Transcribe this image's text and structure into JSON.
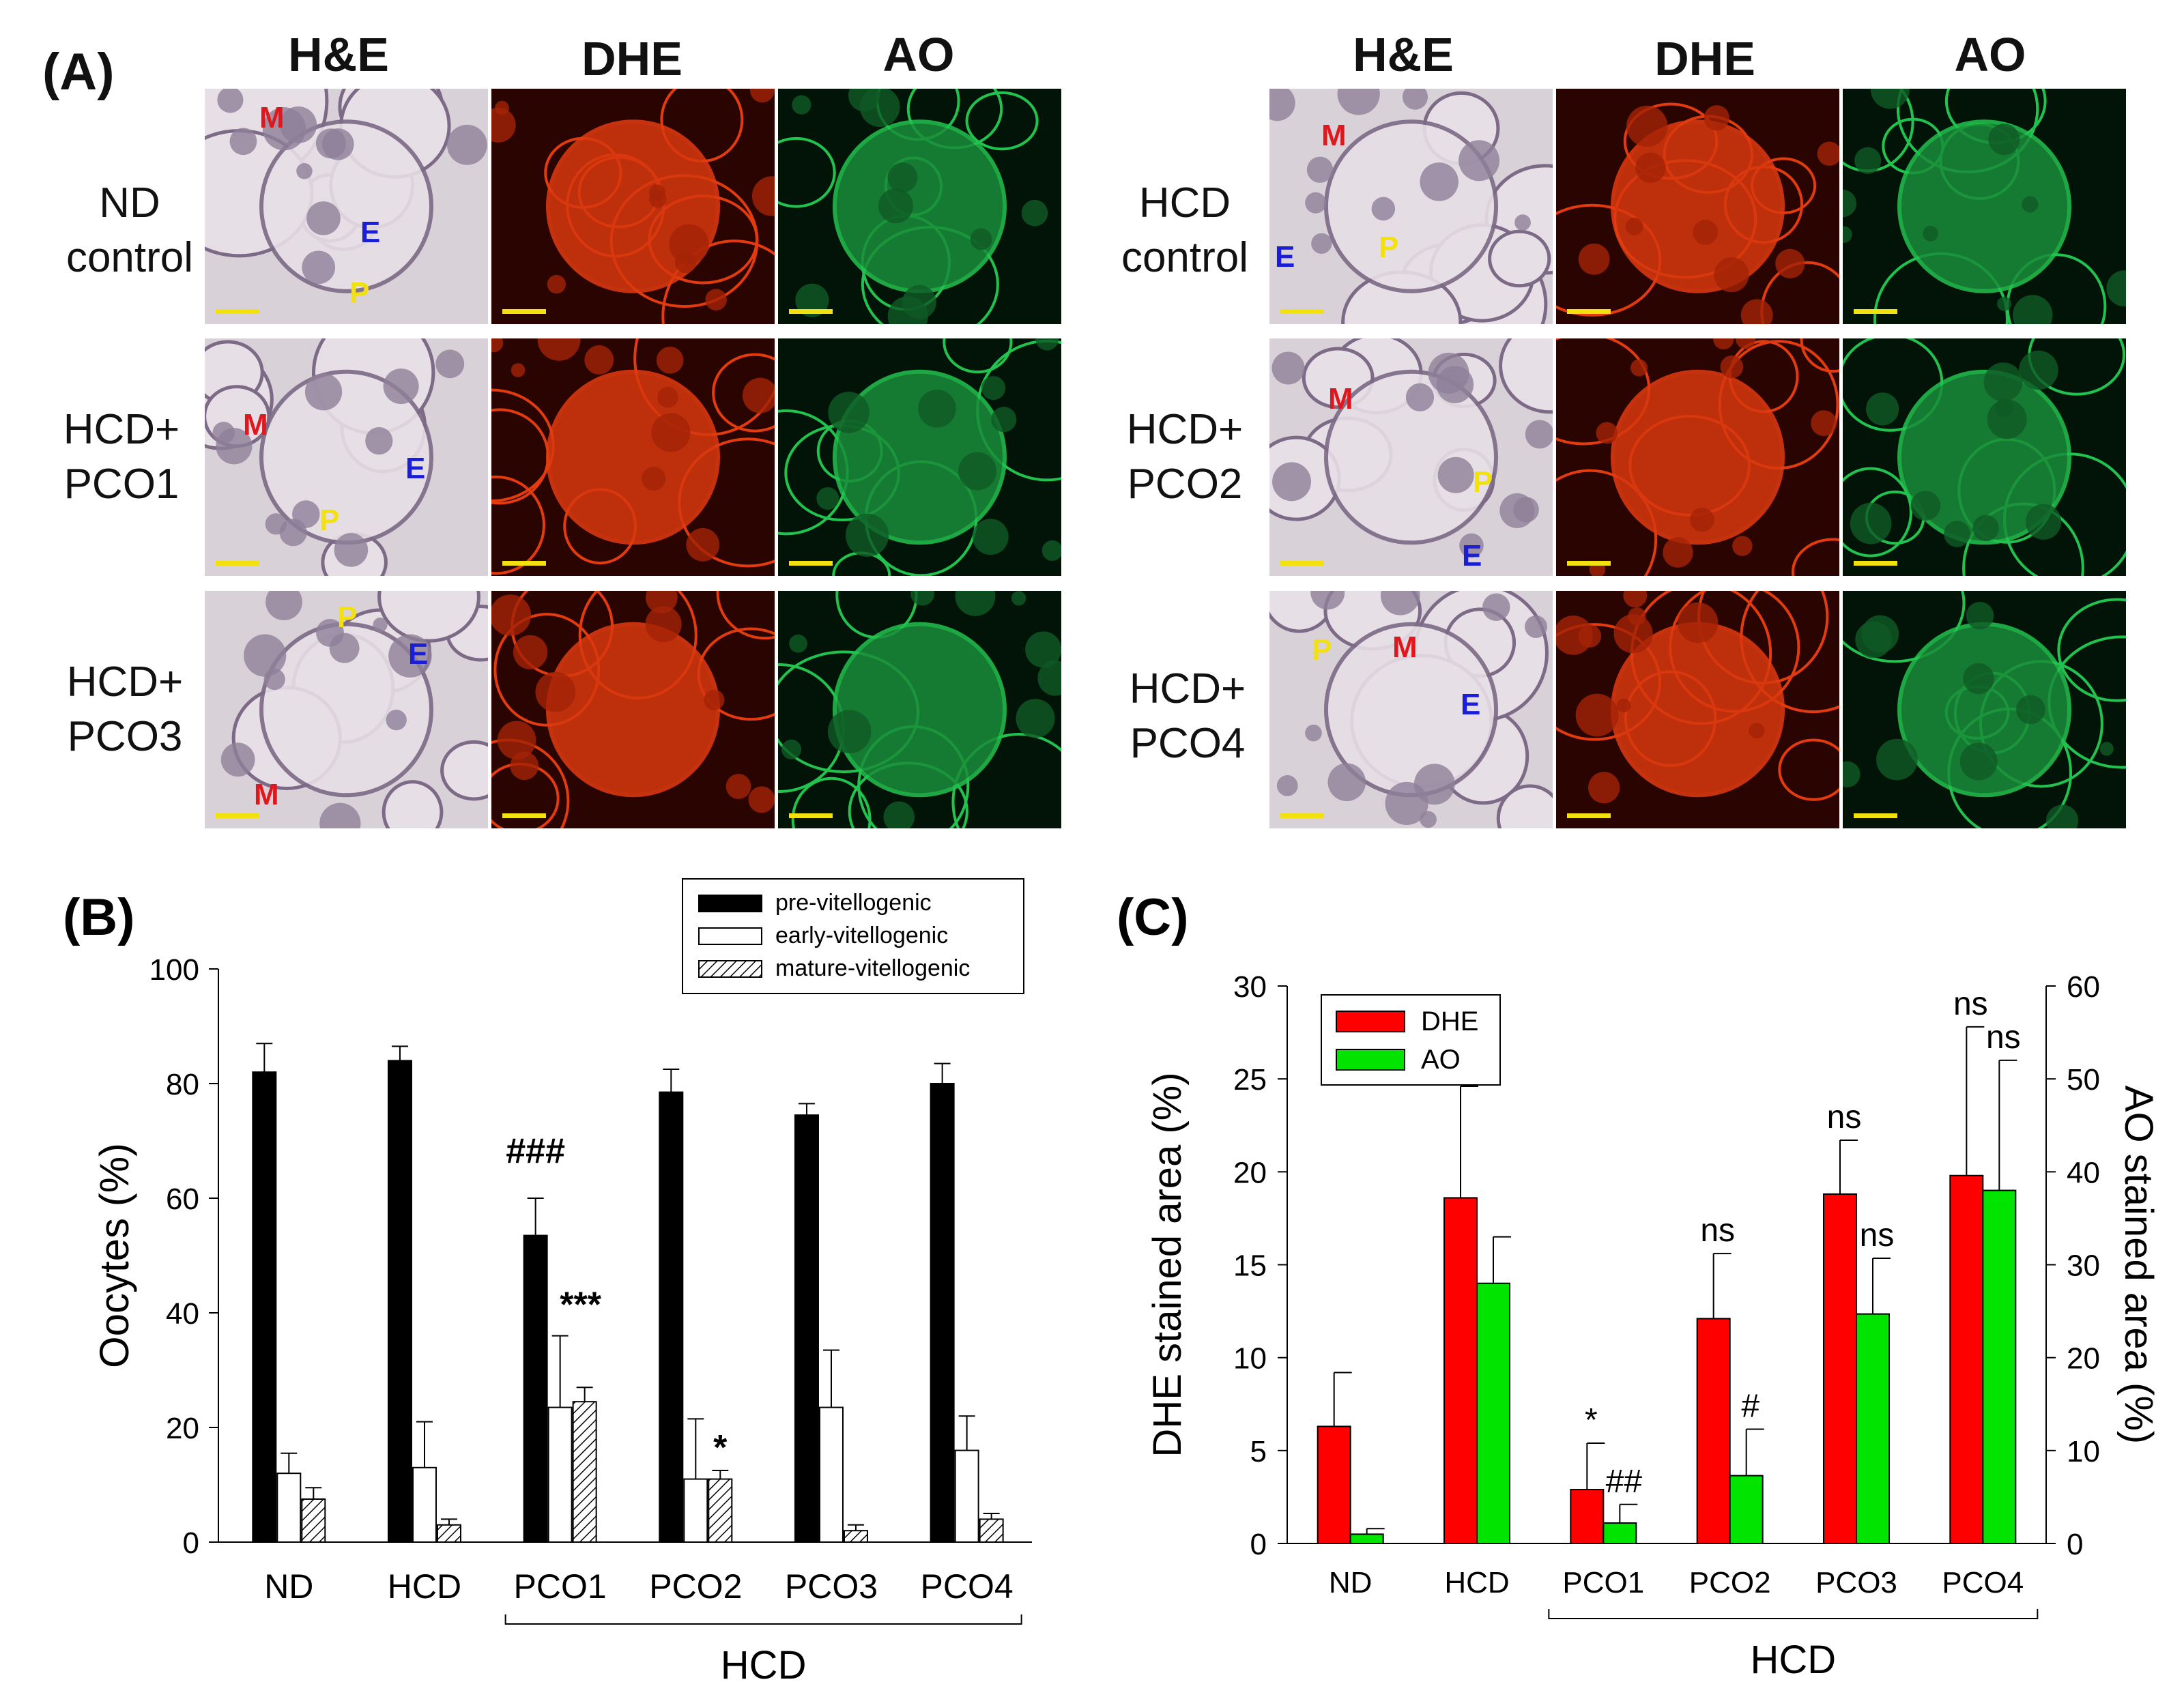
{
  "panelA": {
    "letter": "(A)",
    "col_heads": [
      "H&E",
      "DHE",
      "AO"
    ],
    "left_rows": [
      [
        "ND",
        "control"
      ],
      [
        "HCD+",
        "PCO1"
      ],
      [
        "HCD+",
        "PCO3"
      ]
    ],
    "right_rows": [
      [
        "HCD",
        "control"
      ],
      [
        "HCD+",
        "PCO2"
      ],
      [
        "HCD+",
        "PCO4"
      ]
    ],
    "marker_labels": {
      "M": "M",
      "E": "E",
      "P": "P"
    }
  },
  "chart_data": [
    {
      "type": "bar",
      "panel": "(B)",
      "categories": [
        "ND",
        "HCD",
        "PCO1",
        "PCO2",
        "PCO3",
        "PCO4"
      ],
      "group_label": "HCD",
      "ylabel": "Oocytes (%)",
      "ylim": [
        0,
        100
      ],
      "yticks": [
        0,
        20,
        40,
        60,
        80,
        100
      ],
      "legend_position": "top-right",
      "series": [
        {
          "name": "pre-vitellogenic",
          "color": "#000000",
          "fill": "solid",
          "values": [
            82,
            84,
            53.5,
            78.5,
            74.5,
            80
          ],
          "errors": [
            5,
            2.5,
            6.5,
            4,
            2,
            3.5
          ]
        },
        {
          "name": "early-vitellogenic",
          "color": "#ffffff",
          "fill": "open",
          "values": [
            12,
            13,
            23.5,
            11,
            23.5,
            16
          ],
          "errors": [
            3.5,
            8,
            12.5,
            10.5,
            10,
            6
          ]
        },
        {
          "name": "mature-vitellogenic",
          "color": "#ffffff",
          "fill": "hatched",
          "values": [
            7.5,
            3,
            24.5,
            11,
            2,
            4
          ],
          "errors": [
            2,
            1,
            2.5,
            1.5,
            1,
            1
          ]
        }
      ],
      "annotations": [
        {
          "text": "###",
          "category": "PCO1",
          "series": "pre-vitellogenic"
        },
        {
          "text": "***",
          "category": "PCO1",
          "series": "early-vitellogenic"
        },
        {
          "text": "*",
          "category": "PCO2",
          "series": "mature-vitellogenic"
        }
      ]
    },
    {
      "type": "bar",
      "panel": "(C)",
      "categories": [
        "ND",
        "HCD",
        "PCO1",
        "PCO2",
        "PCO3",
        "PCO4"
      ],
      "group_label": "HCD",
      "ylabel": "DHE stained area (%)",
      "y2label": "AO stained area (%)",
      "ylim": [
        0,
        30
      ],
      "y2lim": [
        0,
        60
      ],
      "yticks": [
        0,
        5,
        10,
        15,
        20,
        25,
        30
      ],
      "y2ticks": [
        0,
        10,
        20,
        30,
        40,
        50,
        60
      ],
      "legend_position": "top-left",
      "series": [
        {
          "name": "DHE",
          "color": "#ff0000",
          "axis": "left",
          "values": [
            6.3,
            18.6,
            2.9,
            12.1,
            18.8,
            19.8
          ],
          "errors": [
            2.9,
            6,
            2.5,
            3.5,
            2.9,
            8
          ]
        },
        {
          "name": "AO",
          "color": "#00e400",
          "axis": "right",
          "values": [
            1,
            28,
            2.2,
            7.3,
            24.7,
            38
          ],
          "errors": [
            0.6,
            5,
            2,
            5,
            6,
            14
          ]
        }
      ],
      "annotations": [
        {
          "text": "*",
          "category": "PCO1",
          "series": "DHE"
        },
        {
          "text": "##",
          "category": "PCO1",
          "series": "AO"
        },
        {
          "text": "ns",
          "category": "PCO2",
          "series": "DHE"
        },
        {
          "text": "#",
          "category": "PCO2",
          "series": "AO"
        },
        {
          "text": "ns",
          "category": "PCO3",
          "series": "DHE"
        },
        {
          "text": "ns",
          "category": "PCO3",
          "series": "AO"
        },
        {
          "text": "ns",
          "category": "PCO4",
          "series": "DHE"
        },
        {
          "text": "ns",
          "category": "PCO4",
          "series": "AO"
        }
      ]
    }
  ]
}
